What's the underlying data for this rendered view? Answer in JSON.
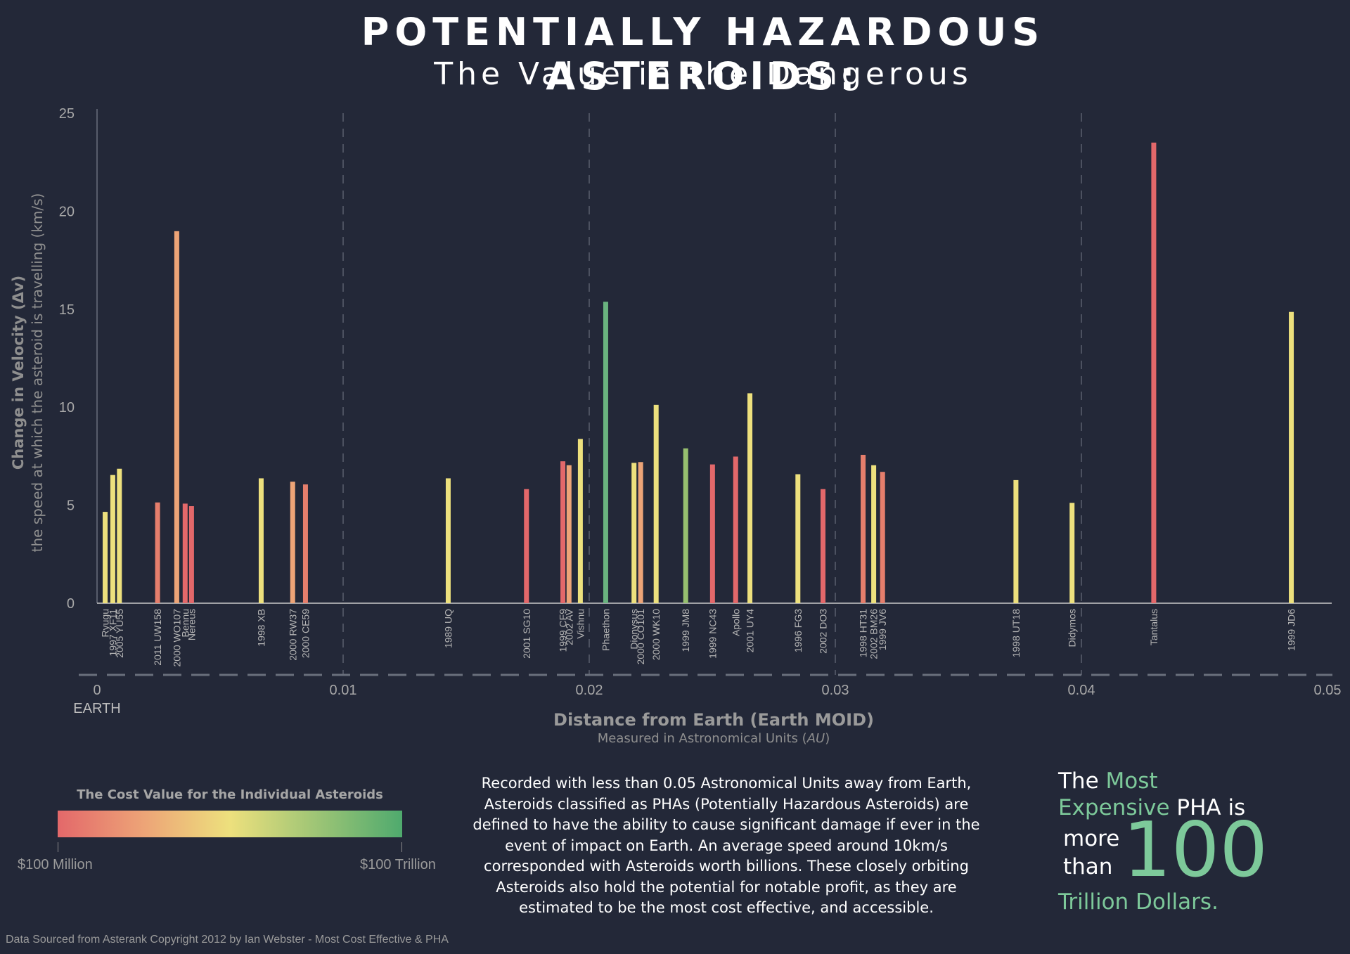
{
  "header": {
    "title": "POTENTIALLY HAZARDOUS ASTEROIDS:",
    "subtitle": "The Value in the Dangerous"
  },
  "chart_data": {
    "type": "bar",
    "title": "POTENTIALLY HAZARDOUS ASTEROIDS:",
    "subtitle": "The Value in the Dangerous",
    "ylabel": "Change in Velocity (Δv)",
    "ylabel_sub": "the speed at which the asteroid is travelling (km/s)",
    "xlabel": "Distance from Earth (Earth MOID)",
    "xlabel_sub_prefix": "Measured in Astronomical Units (",
    "xlabel_sub_unit": "AU",
    "xlabel_sub_suffix": ")",
    "x_origin_label": "EARTH",
    "ylim": [
      0,
      25
    ],
    "xlim": [
      0,
      0.05
    ],
    "y_ticks": [
      "0",
      "5",
      "10",
      "15",
      "20",
      "25"
    ],
    "x_ticks": [
      "0",
      "0.01",
      "0.02",
      "0.03",
      "0.04",
      "0.05"
    ],
    "grid": "vertical dashed lines at 0.01 AU intervals",
    "points": [
      {
        "name": "Ryugu",
        "x": 0.00033,
        "y": 4.66,
        "color": "#ede07d"
      },
      {
        "name": "1997 XF11",
        "x": 0.00064,
        "y": 6.54,
        "color": "#ede07d"
      },
      {
        "name": "2005 YU55",
        "x": 0.00091,
        "y": 6.86,
        "color": "#ede07d"
      },
      {
        "name": "2011 UW158",
        "x": 0.00246,
        "y": 5.14,
        "color": "#e57e6c"
      },
      {
        "name": "2000 WO107",
        "x": 0.00324,
        "y": 18.98,
        "color": "#eda477"
      },
      {
        "name": "Bennu",
        "x": 0.00358,
        "y": 5.08,
        "color": "#e3686a"
      },
      {
        "name": "Nereus",
        "x": 0.00384,
        "y": 4.95,
        "color": "#e3686a"
      },
      {
        "name": "1998 XB",
        "x": 0.00667,
        "y": 6.37,
        "color": "#ede07d"
      },
      {
        "name": "2000 RW37",
        "x": 0.00795,
        "y": 6.2,
        "color": "#eda477"
      },
      {
        "name": "2000 CE59",
        "x": 0.00847,
        "y": 6.06,
        "color": "#e57e6c"
      },
      {
        "name": "1989 UQ",
        "x": 0.01427,
        "y": 6.37,
        "color": "#ede07d"
      },
      {
        "name": "2001 SG10",
        "x": 0.01745,
        "y": 5.82,
        "color": "#e3686a"
      },
      {
        "name": "1999 CF9",
        "x": 0.01893,
        "y": 7.24,
        "color": "#e3686a"
      },
      {
        "name": "2002 AV",
        "x": 0.01918,
        "y": 7.04,
        "color": "#eda477"
      },
      {
        "name": "Vishnu",
        "x": 0.01964,
        "y": 8.38,
        "color": "#ede07d"
      },
      {
        "name": "Phaethon",
        "x": 0.02067,
        "y": 15.38,
        "color": "#6ab37f"
      },
      {
        "name": "Dionysus",
        "x": 0.02182,
        "y": 7.16,
        "color": "#ede07d"
      },
      {
        "name": "2000 CO101",
        "x": 0.02209,
        "y": 7.2,
        "color": "#eda477"
      },
      {
        "name": "2000 WK10",
        "x": 0.02272,
        "y": 10.12,
        "color": "#ede07d"
      },
      {
        "name": "1999 JM8",
        "x": 0.02392,
        "y": 7.9,
        "color": "#96bf6f"
      },
      {
        "name": "1999 NC43",
        "x": 0.02501,
        "y": 7.08,
        "color": "#e3686a"
      },
      {
        "name": "Apollo",
        "x": 0.02595,
        "y": 7.48,
        "color": "#e3686a"
      },
      {
        "name": "2001 UY4",
        "x": 0.02653,
        "y": 10.71,
        "color": "#ede07d"
      },
      {
        "name": "1996 FG3",
        "x": 0.02848,
        "y": 6.58,
        "color": "#ede07d"
      },
      {
        "name": "2002 DO3",
        "x": 0.0295,
        "y": 5.82,
        "color": "#e3686a"
      },
      {
        "name": "1998 HT31",
        "x": 0.03113,
        "y": 7.57,
        "color": "#e57e6c"
      },
      {
        "name": "2002 BM26",
        "x": 0.03156,
        "y": 7.04,
        "color": "#ede07d"
      },
      {
        "name": "1999 JV6",
        "x": 0.03192,
        "y": 6.7,
        "color": "#e57e6c"
      },
      {
        "name": "1998 UT18",
        "x": 0.03734,
        "y": 6.28,
        "color": "#ede07d"
      },
      {
        "name": "Didymos",
        "x": 0.03962,
        "y": 5.12,
        "color": "#ede07d"
      },
      {
        "name": "Tantalus",
        "x": 0.04294,
        "y": 23.5,
        "color": "#e3686a"
      },
      {
        "name": "1999 JD6",
        "x": 0.04853,
        "y": 14.86,
        "color": "#ede07d"
      }
    ]
  },
  "legend": {
    "title": "The Cost Value for the Individual Asteroids",
    "min_label": "$100 Million",
    "max_label": "$100 Trillion",
    "colors": [
      "#e3686a",
      "#eda477",
      "#ede07d",
      "#4faa6e"
    ]
  },
  "description": "Recorded with less than 0.05 Astronomical Units away from Earth, Asteroids classified as PHAs (Potentially Hazardous Asteroids) are defined to have the ability to cause significant damage if ever in the event of impact on Earth. An average speed around 10km/s corresponded with Asteroids worth billions. These closely orbiting Asteroids also hold the potential for notable profit, as they are estimated to be the most cost effective, and accessible.",
  "callout": {
    "the": "The",
    "most": "Most",
    "expensive": "Expensive",
    "pha_is": "PHA is",
    "more": "more",
    "than": "than",
    "number": "100",
    "trillion": "Trillion Dollars."
  },
  "footer": "Data Sourced from Asterank Copyright 2012 by Ian Webster - Most Cost Effective & PHA",
  "colors": {
    "background": "#232838",
    "accent_green": "#7dc99a",
    "axis": "#9a9a9a"
  }
}
